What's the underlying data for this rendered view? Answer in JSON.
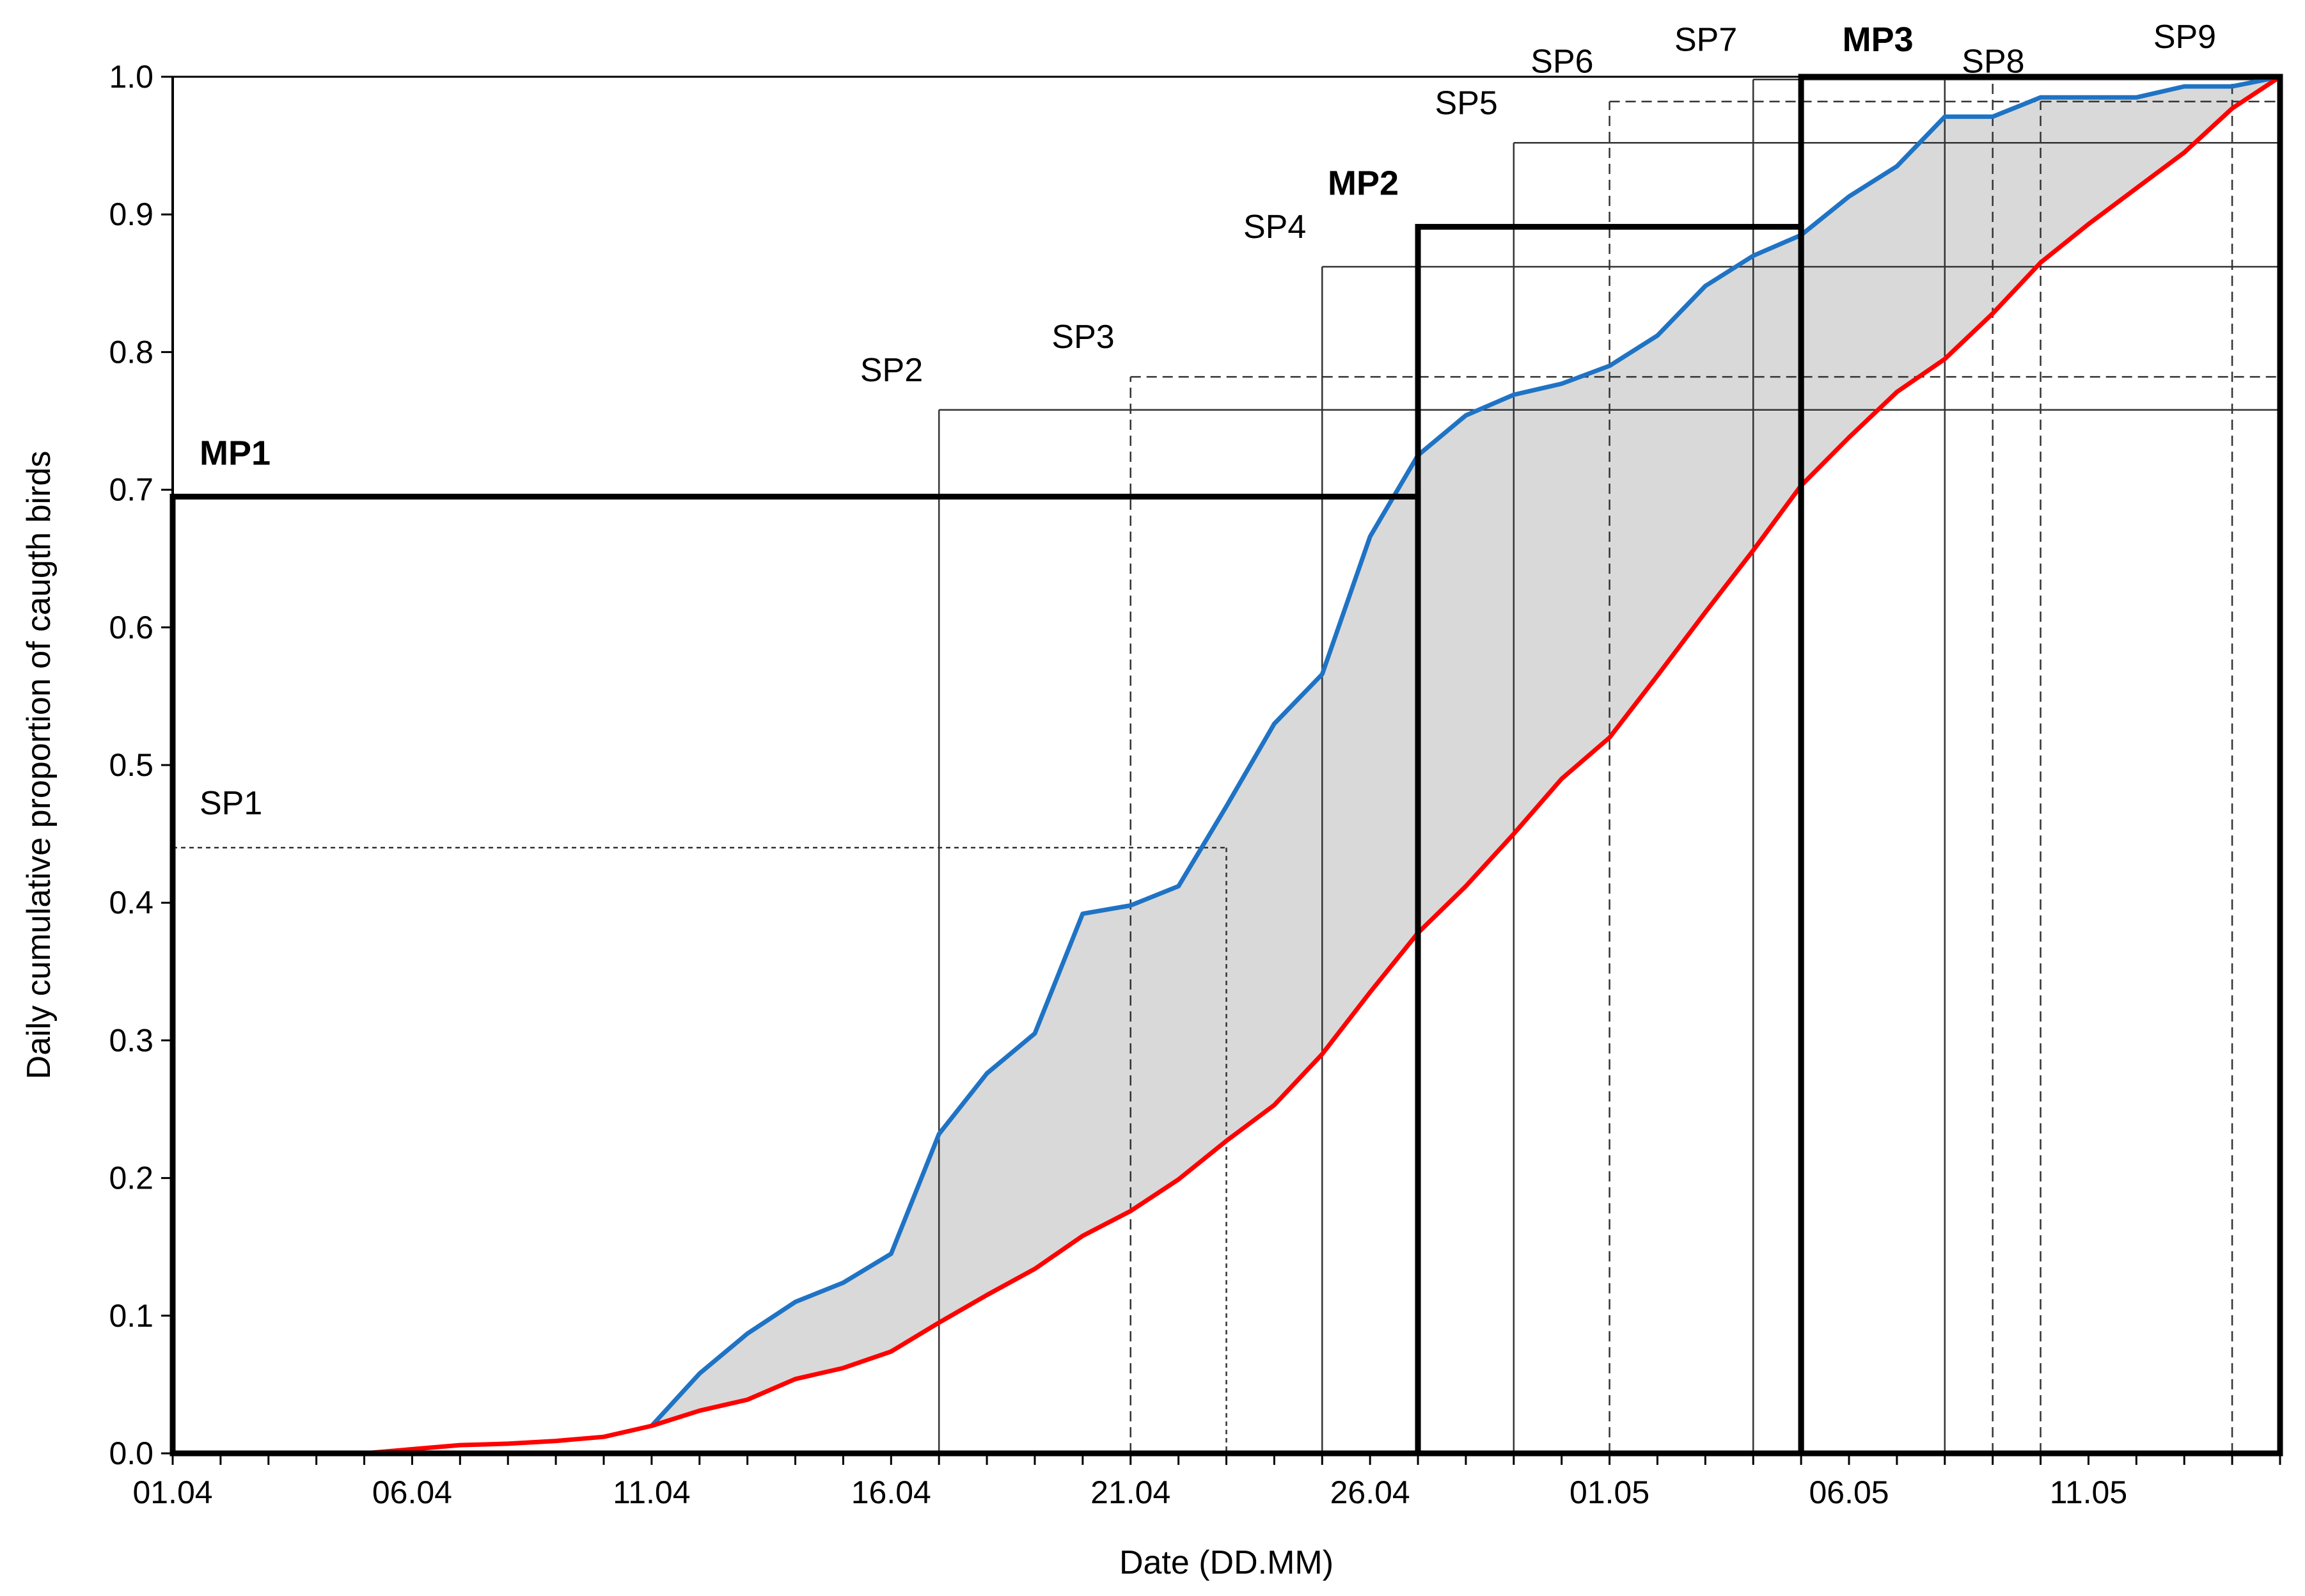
{
  "chart_data": {
    "type": "line",
    "title": "",
    "xlabel": "Date (DD.MM)",
    "ylabel": "Daily cumulative proportion of caugth birds",
    "xlim": [
      "01.04",
      "15.05"
    ],
    "ylim": [
      0,
      1
    ],
    "x_tick_labels": [
      "01.04",
      "06.04",
      "11.04",
      "16.04",
      "21.04",
      "26.04",
      "01.05",
      "06.05",
      "11.05"
    ],
    "y_tick_labels": [
      "0.0",
      "0.1",
      "0.2",
      "0.3",
      "0.4",
      "0.5",
      "0.6",
      "0.7",
      "0.8",
      "0.9",
      "1.0"
    ],
    "grid": false,
    "legend": "none",
    "area_fill_between_series": true,
    "area_color": "#d9d9d9",
    "series": [
      {
        "color": "#1f73c4",
        "x": [
          "11.04",
          "12.04",
          "13.04",
          "14.04",
          "15.04",
          "16.04",
          "17.04",
          "18.04",
          "19.04",
          "20.04",
          "21.04",
          "22.04",
          "23.04",
          "24.04",
          "25.04",
          "26.04",
          "27.04",
          "28.04",
          "29.04",
          "30.04",
          "01.05",
          "02.05",
          "03.05",
          "04.05",
          "05.05",
          "06.05",
          "07.05",
          "08.05",
          "09.05",
          "10.05",
          "11.05",
          "12.05",
          "13.05",
          "14.05",
          "15.05"
        ],
        "y": [
          0.02,
          0.058,
          0.087,
          0.11,
          0.124,
          0.145,
          0.232,
          0.276,
          0.305,
          0.392,
          0.398,
          0.412,
          0.47,
          0.53,
          0.566,
          0.666,
          0.725,
          0.754,
          0.769,
          0.777,
          0.79,
          0.812,
          0.848,
          0.87,
          0.885,
          0.913,
          0.935,
          0.971,
          0.971,
          0.985,
          0.985,
          0.985,
          0.993,
          0.993,
          1.0
        ]
      },
      {
        "color": "#ff0000",
        "x": [
          "01.04",
          "05.04",
          "06.04",
          "07.04",
          "08.04",
          "09.04",
          "10.04",
          "11.04",
          "12.04",
          "13.04",
          "14.04",
          "15.04",
          "16.04",
          "17.04",
          "18.04",
          "19.04",
          "20.04",
          "21.04",
          "22.04",
          "23.04",
          "24.04",
          "25.04",
          "26.04",
          "27.04",
          "28.04",
          "29.04",
          "30.04",
          "01.05",
          "02.05",
          "03.05",
          "04.05",
          "05.05",
          "06.05",
          "07.05",
          "08.05",
          "09.05",
          "10.05",
          "11.05",
          "12.05",
          "13.05",
          "14.05",
          "15.05"
        ],
        "y": [
          0.0,
          0.0,
          0.003,
          0.006,
          0.007,
          0.009,
          0.012,
          0.02,
          0.031,
          0.039,
          0.054,
          0.062,
          0.074,
          0.095,
          0.115,
          0.134,
          0.158,
          0.176,
          0.199,
          0.227,
          0.253,
          0.29,
          0.335,
          0.378,
          0.412,
          0.45,
          0.49,
          0.52,
          0.565,
          0.611,
          0.656,
          0.703,
          0.738,
          0.771,
          0.795,
          0.828,
          0.865,
          0.893,
          0.919,
          0.945,
          0.977,
          1.0
        ]
      }
    ],
    "mp_boxes": [
      {
        "label": "MP1",
        "from": "01.04",
        "to": "27.04",
        "top": 0.695
      },
      {
        "label": "MP2",
        "from": "27.04",
        "to": "05.05",
        "top": 0.891
      },
      {
        "label": "MP3",
        "from": "05.05",
        "to": "15.05",
        "top": 1.0
      }
    ],
    "sp_markers": [
      {
        "label": "SP1",
        "x": "23.04",
        "y": 0.44,
        "style": "dotted",
        "horizontal_from": "01.04"
      },
      {
        "label": "SP2",
        "x": "17.04",
        "y": 0.758,
        "style": "solid"
      },
      {
        "label": "SP3",
        "x": "21.04",
        "y": 0.782,
        "style": "dashed"
      },
      {
        "label": "SP4",
        "x": "25.04",
        "y": 0.862,
        "style": "solid"
      },
      {
        "label": "SP5",
        "x": "29.04",
        "y": 0.952,
        "style": "solid"
      },
      {
        "label": "SP6",
        "x": "01.05",
        "y": 0.982,
        "style": "dashed"
      },
      {
        "label": "SP7",
        "x": "04.05",
        "y": 0.998,
        "style": "solid"
      },
      {
        "label": "SP8",
        "x": "10.05",
        "y": 0.982,
        "style": "dashed"
      },
      {
        "label": "SP9",
        "x": "14.05",
        "y": 1.0,
        "style": "dashed"
      }
    ],
    "extra_vertical_lines": [
      {
        "x": "08.05",
        "style": "solid"
      },
      {
        "x": "09.05",
        "style": "dashed"
      }
    ]
  }
}
